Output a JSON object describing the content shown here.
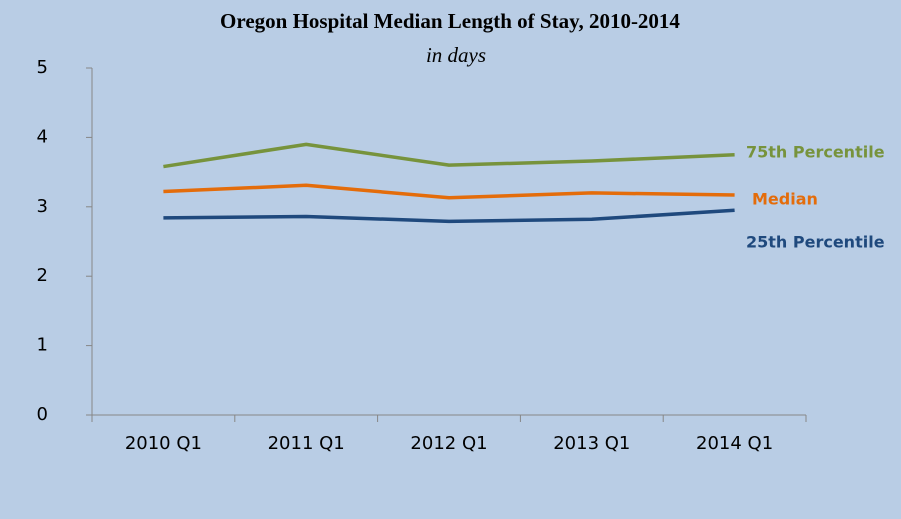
{
  "chart_data": {
    "type": "line",
    "title": "Oregon Hospital Median Length of Stay, 2010-2014",
    "subtitle": "in days",
    "categories": [
      "2010 Q1",
      "2011 Q1",
      "2012 Q1",
      "2013 Q1",
      "2014 Q1"
    ],
    "series": [
      {
        "name": "75th Percentile",
        "color": "#77933c",
        "values": [
          3.58,
          3.9,
          3.6,
          3.66,
          3.75
        ]
      },
      {
        "name": "Median",
        "color": "#e46c0a",
        "values": [
          3.22,
          3.31,
          3.13,
          3.2,
          3.17
        ]
      },
      {
        "name": "25th Percentile",
        "color": "#1f497d",
        "values": [
          2.84,
          2.86,
          2.79,
          2.82,
          2.95
        ]
      }
    ],
    "ylim": [
      0,
      5
    ],
    "yticks": [
      0,
      1,
      2,
      3,
      4,
      5
    ],
    "grid": false
  }
}
